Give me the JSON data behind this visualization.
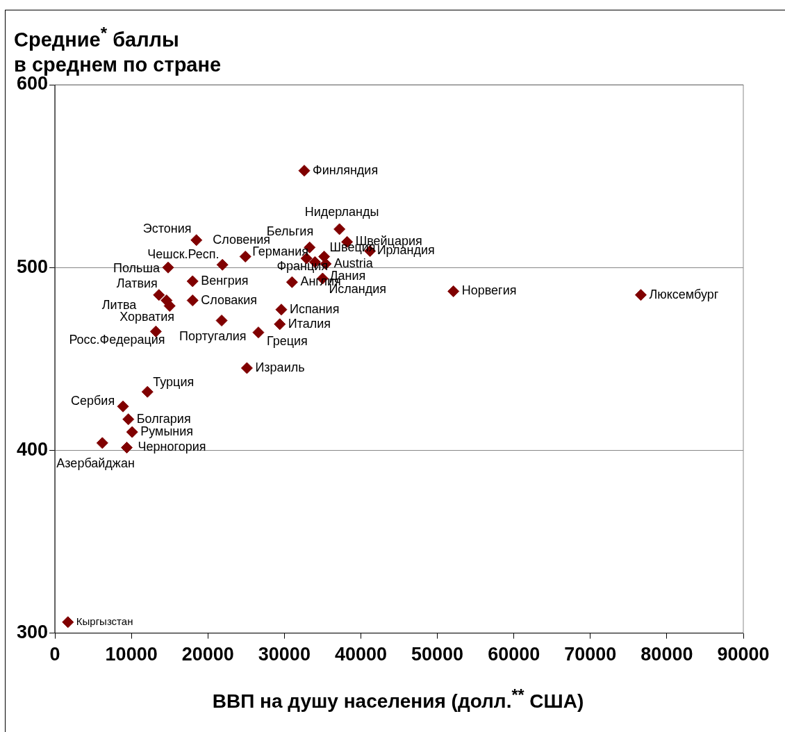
{
  "chart_data": {
    "type": "scatter",
    "ylabel": "Средние$^{*}$ баллы\nв среднем по стране",
    "xlabel": "ВВП на душу населения (долл.$^{**}$ США)",
    "x": [
      32600,
      37200,
      38200,
      41200,
      33300,
      35200,
      24900,
      32900,
      34000,
      35400,
      35000,
      31000,
      29600,
      29400,
      26600,
      25100,
      21800,
      18500,
      21900,
      14800,
      18000,
      18000,
      13600,
      14600,
      15000,
      13200,
      12100,
      8900,
      9600,
      10100,
      9400,
      6200,
      52100,
      76600,
      1700
    ],
    "series": [
      {
        "color": "#800000",
        "values": [
          553,
          521,
          514,
          509,
          511,
          506,
          506,
          505,
          503,
          502,
          494,
          492,
          477,
          469,
          464.5,
          445,
          471,
          515,
          501.5,
          500,
          492.5,
          482,
          485,
          482,
          479,
          465,
          432,
          424,
          417,
          410,
          401.5,
          404,
          487,
          485,
          306
        ]
      }
    ],
    "annotations": [
      {
        "text": "Финляндия",
        "x": 32600,
        "y": 553
      },
      {
        "text": "Нидерланды",
        "x": 37200,
        "y": 521
      },
      {
        "text": "Швейцария",
        "x": 38200,
        "y": 514
      },
      {
        "text": "Ирландия",
        "x": 41200,
        "y": 509
      },
      {
        "text": "Бельгия",
        "x": 33300,
        "y": 511
      },
      {
        "text": "Швеция",
        "x": 35200,
        "y": 506
      },
      {
        "text": "Словения",
        "x": 24900,
        "y": 506
      },
      {
        "text": "Германия",
        "x": 32900,
        "y": 505
      },
      {
        "text": "Франция",
        "x": 34000,
        "y": 503
      },
      {
        "text": "Austria",
        "x": 35400,
        "y": 502
      },
      {
        "text": "Дания",
        "x": 35000,
        "y": 494
      },
      {
        "text": "Исландия",
        "x": 35000,
        "y": 494
      },
      {
        "text": "Англия",
        "x": 31000,
        "y": 492
      },
      {
        "text": "Испания",
        "x": 29600,
        "y": 477
      },
      {
        "text": "Италия",
        "x": 29400,
        "y": 469
      },
      {
        "text": "Греция",
        "x": 26600,
        "y": 464.5
      },
      {
        "text": "Израиль",
        "x": 25100,
        "y": 445
      },
      {
        "text": "Португалия",
        "x": 21800,
        "y": 471
      },
      {
        "text": "Эстония",
        "x": 18500,
        "y": 515
      },
      {
        "text": "Чешск.Респ.",
        "x": 21900,
        "y": 501.5
      },
      {
        "text": "Польша",
        "x": 14800,
        "y": 500
      },
      {
        "text": "Венгрия",
        "x": 18000,
        "y": 492.5
      },
      {
        "text": "Словакия",
        "x": 18000,
        "y": 482
      },
      {
        "text": "Латвия",
        "x": 13600,
        "y": 485
      },
      {
        "text": "Литва",
        "x": 14600,
        "y": 482
      },
      {
        "text": "Хорватия",
        "x": 15000,
        "y": 479
      },
      {
        "text": "Росс.Федерация",
        "x": 13200,
        "y": 465
      },
      {
        "text": "Турция",
        "x": 12100,
        "y": 432
      },
      {
        "text": "Сербия",
        "x": 8900,
        "y": 424
      },
      {
        "text": "Болгария",
        "x": 9600,
        "y": 417
      },
      {
        "text": "Румыния",
        "x": 10100,
        "y": 410
      },
      {
        "text": "Черногория",
        "x": 9400,
        "y": 401.5
      },
      {
        "text": "Азербайджан",
        "x": 6200,
        "y": 404
      },
      {
        "text": "Норвегия",
        "x": 52100,
        "y": 487
      },
      {
        "text": "Люксембург",
        "x": 76600,
        "y": 485
      },
      {
        "text": "Кыргызстан",
        "x": 1700,
        "y": 306
      }
    ],
    "xlim": [
      0,
      90000
    ],
    "xticks": [
      0,
      10000,
      20000,
      30000,
      40000,
      50000,
      60000,
      70000,
      80000,
      90000
    ],
    "ylim": [
      300,
      600
    ],
    "yticks": [
      300,
      400,
      500,
      600
    ],
    "grid": "y",
    "marker": "diamond",
    "legend": false
  }
}
